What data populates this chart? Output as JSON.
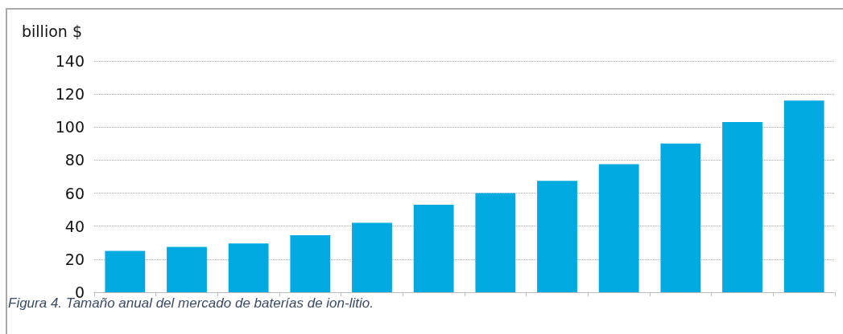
{
  "chart_data": {
    "type": "bar",
    "ylabel": "billion $",
    "categories": [
      null,
      null,
      null,
      null,
      null,
      null,
      null,
      null,
      null,
      null,
      null,
      null
    ],
    "values": [
      25,
      27.5,
      29.5,
      34.5,
      42,
      53,
      60,
      67.5,
      77.5,
      90,
      103,
      116
    ],
    "color": "#00a9e0",
    "ylim": [
      0,
      140
    ],
    "yticks": [
      0,
      20,
      40,
      60,
      80,
      100,
      120,
      140
    ],
    "grid": "y",
    "annotations": [
      "Figura 4. Tamaño anual del mercado de baterías de ion-litio."
    ]
  }
}
